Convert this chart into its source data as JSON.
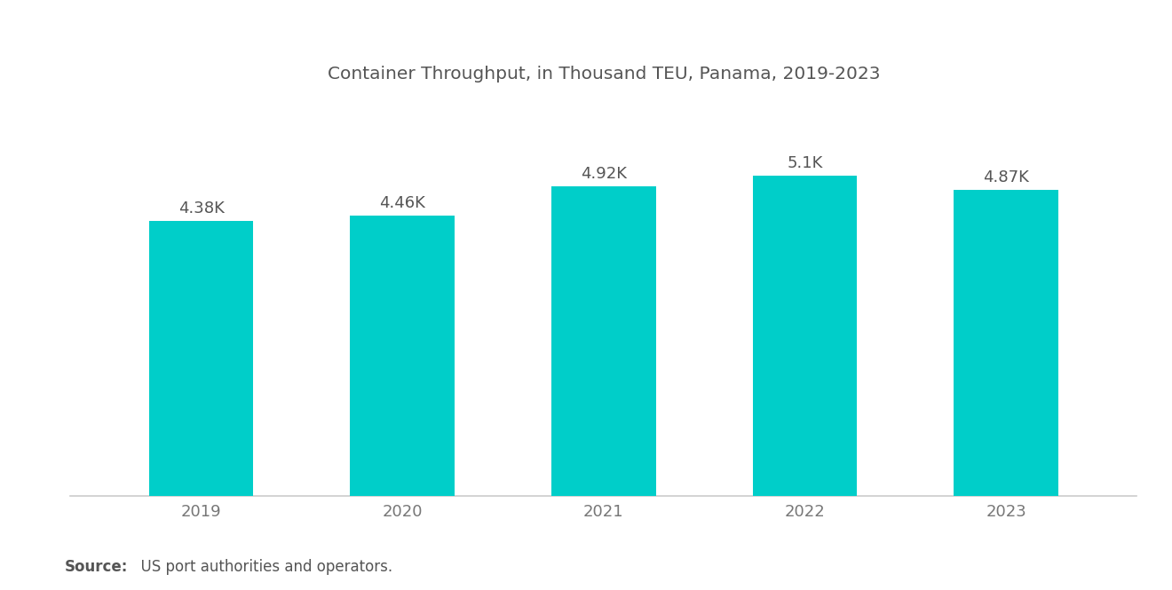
{
  "title": "Container Throughput, in Thousand TEU, Panama, 2019-2023",
  "categories": [
    "2019",
    "2020",
    "2021",
    "2022",
    "2023"
  ],
  "values": [
    4.38,
    4.46,
    4.92,
    5.1,
    4.87
  ],
  "labels": [
    "4.38K",
    "4.46K",
    "4.92K",
    "5.1K",
    "4.87K"
  ],
  "bar_color": "#00CEC9",
  "background_color": "#ffffff",
  "title_color": "#555555",
  "label_color": "#555555",
  "tick_color": "#777777",
  "ylim": [
    0,
    6.2
  ],
  "title_fontsize": 14.5,
  "label_fontsize": 13,
  "tick_fontsize": 13,
  "source_bold": "Source:",
  "source_text": "  US port authorities and operators.",
  "source_fontsize": 12,
  "bar_width": 0.52
}
